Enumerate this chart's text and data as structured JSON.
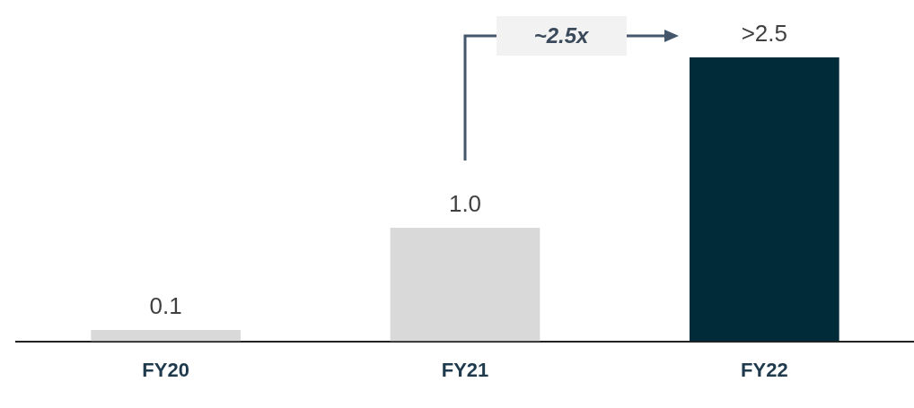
{
  "chart_data": {
    "type": "bar",
    "categories": [
      "FY20",
      "FY21",
      "FY22"
    ],
    "values": [
      0.1,
      1.0,
      2.5
    ],
    "colors": [
      "#d9d9d9",
      "#d9d9d9",
      "#022b3a"
    ],
    "value_labels": [
      "0.1",
      "1.0",
      ">2.5"
    ],
    "annotations": [
      "~2.5x"
    ],
    "grid": false,
    "legend": false
  }
}
